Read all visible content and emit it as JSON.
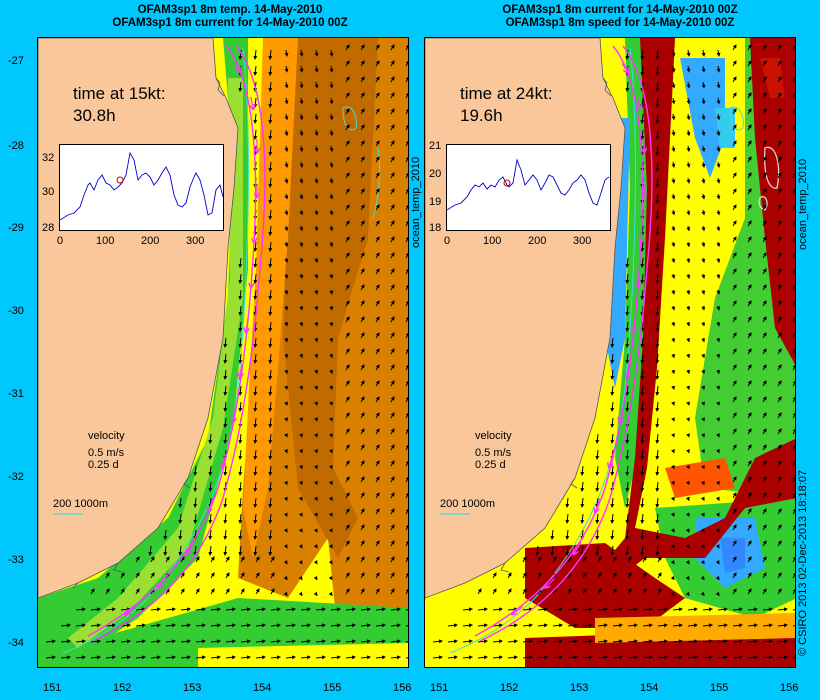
{
  "left": {
    "title_line1": "OFAM3sp1 8m temp. 14-May-2010",
    "title_line2": "OFAM3sp1 8m current for 14-May-2010 00Z",
    "time_label": "time at 15kt:",
    "time_value": "30.8h",
    "inset_y_ticks": [
      "32",
      "30",
      "28"
    ],
    "inset_x_ticks": [
      "0",
      "100",
      "200",
      "300"
    ]
  },
  "right": {
    "title_line1": "OFAM3sp1 8m current for 14-May-2010 00Z",
    "title_line2": "OFAM3sp1 8m speed for 14-May-2010 00Z",
    "time_label": "time at 24kt:",
    "time_value": "19.6h",
    "inset_y_ticks": [
      "21",
      "20",
      "19",
      "18"
    ],
    "inset_x_ticks": [
      "0",
      "100",
      "200",
      "300"
    ]
  },
  "legend": {
    "velocity": "velocity",
    "speed": "0.5 m/s",
    "duration": "0.25 d",
    "depth_scale": "200  1000m"
  },
  "axes": {
    "y_ticks": [
      "-27",
      "-28",
      "-29",
      "-30",
      "-31",
      "-32",
      "-33",
      "-34"
    ],
    "x_ticks": [
      "151",
      "152",
      "153",
      "154",
      "155",
      "156"
    ]
  },
  "side_labels": {
    "left_inset_var": "ocean_temp_2010",
    "right_var": "ocean_temp_2010",
    "credit": "© CSIRO 2013   02-Dec-2013 18:18:07"
  },
  "colors": {
    "land": "#f9c79a",
    "background": "#00c8ff",
    "route": "#ff33ff",
    "contour": "#40e0d0"
  }
}
